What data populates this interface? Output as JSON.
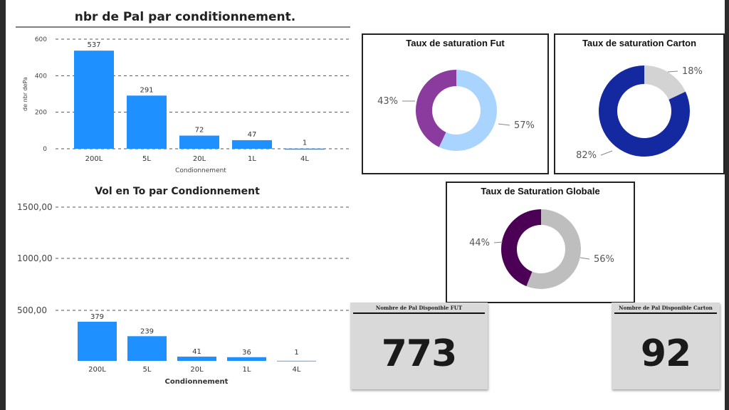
{
  "chart_data": [
    {
      "type": "bar",
      "title": "nbr de Pal par conditionnement.",
      "xlabel": "Condionnement",
      "ylabel": "de nbr dePa",
      "categories": [
        "200L",
        "5L",
        "20L",
        "1L",
        "4L"
      ],
      "values": [
        537,
        291,
        72,
        47,
        1
      ],
      "data_labels": [
        "537",
        "291",
        "72",
        "47",
        "1"
      ],
      "yticks": [
        "0",
        "200",
        "400",
        "600"
      ],
      "ylim": [
        0,
        600
      ],
      "grid": true,
      "color": "#1E90FF"
    },
    {
      "type": "bar",
      "title": "Vol en To par Condionnement",
      "xlabel": "Condionnement",
      "ylabel": "",
      "categories": [
        "200L",
        "5L",
        "20L",
        "1L",
        "4L"
      ],
      "values": [
        379,
        239,
        41,
        36,
        1
      ],
      "data_labels": [
        "379",
        "239",
        "41",
        "36",
        "1"
      ],
      "yticks": [
        "500,00",
        "1000,00",
        "1500,00"
      ],
      "ylim": [
        0,
        1500
      ],
      "grid": true,
      "color": "#1E90FF"
    },
    {
      "type": "pie",
      "title": "Taux de saturation Fut",
      "slices": [
        {
          "label": "57%",
          "value": 57,
          "color": "#A9D4FF"
        },
        {
          "label": "43%",
          "value": 43,
          "color": "#8B3A9E"
        }
      ]
    },
    {
      "type": "pie",
      "title": "Taux de saturation Carton",
      "slices": [
        {
          "label": "18%",
          "value": 18,
          "color": "#D3D3D3"
        },
        {
          "label": "82%",
          "value": 82,
          "color": "#1428A0"
        }
      ]
    },
    {
      "type": "pie",
      "title": "Taux de Saturation Globale",
      "slices": [
        {
          "label": "56%",
          "value": 56,
          "color": "#BEBEBE"
        },
        {
          "label": "44%",
          "value": 44,
          "color": "#4B0055"
        }
      ]
    }
  ],
  "kpis": [
    {
      "label": "Nombre de Pal Disponible FUT",
      "value": "773"
    },
    {
      "label": "Nombre de Pal Disponible Carton",
      "value": "92"
    }
  ]
}
